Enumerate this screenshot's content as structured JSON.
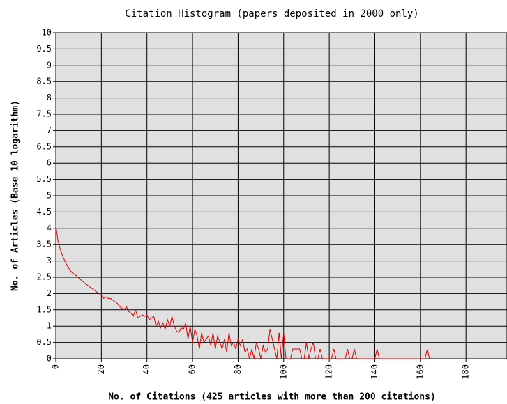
{
  "chart_data": {
    "type": "line",
    "title": "Citation Histogram (papers deposited in 2000 only)",
    "x_label": "No. of Citations (425 articles with more than 200 citations)",
    "y_label": "No. of Articles (Base 10 logarithm)",
    "x": [
      0,
      1,
      2,
      3,
      4,
      5,
      6,
      7,
      8,
      9,
      10,
      11,
      12,
      13,
      14,
      15,
      16,
      17,
      18,
      19,
      20,
      21,
      22,
      23,
      24,
      25,
      26,
      27,
      28,
      29,
      30,
      31,
      32,
      33,
      34,
      35,
      36,
      37,
      38,
      39,
      40,
      41,
      42,
      43,
      44,
      45,
      46,
      47,
      48,
      49,
      50,
      51,
      52,
      53,
      54,
      55,
      56,
      57,
      58,
      59,
      60,
      61,
      62,
      63,
      64,
      65,
      66,
      67,
      68,
      69,
      70,
      71,
      72,
      73,
      74,
      75,
      76,
      77,
      78,
      79,
      80,
      81,
      82,
      83,
      84,
      85,
      86,
      87,
      88,
      89,
      90,
      91,
      92,
      93,
      94,
      95,
      96,
      97,
      98,
      99,
      100,
      101,
      102,
      103,
      104,
      105,
      106,
      107,
      108,
      109,
      110,
      111,
      112,
      113,
      114,
      115,
      116,
      117,
      118,
      119,
      120,
      121,
      122,
      123,
      127,
      128,
      129,
      130,
      131,
      132,
      140,
      141,
      142,
      162,
      163,
      164
    ],
    "series": [
      {
        "name": "articles",
        "color": "#dd0000",
        "values": [
          4.1,
          3.6,
          3.35,
          3.15,
          3.0,
          2.85,
          2.75,
          2.65,
          2.6,
          2.55,
          2.48,
          2.42,
          2.36,
          2.3,
          2.25,
          2.2,
          2.15,
          2.1,
          2.05,
          2.0,
          1.95,
          1.85,
          1.9,
          1.85,
          1.85,
          1.8,
          1.75,
          1.7,
          1.6,
          1.55,
          1.5,
          1.6,
          1.45,
          1.4,
          1.3,
          1.5,
          1.25,
          1.3,
          1.35,
          1.3,
          1.35,
          1.2,
          1.25,
          1.3,
          1.0,
          1.15,
          0.95,
          1.1,
          0.9,
          1.2,
          1.0,
          1.3,
          1.0,
          0.85,
          0.8,
          0.95,
          0.9,
          1.1,
          0.6,
          1.0,
          0.5,
          0.9,
          0.7,
          0.3,
          0.8,
          0.5,
          0.6,
          0.7,
          0.4,
          0.8,
          0.3,
          0.7,
          0.5,
          0.3,
          0.6,
          0.2,
          0.8,
          0.4,
          0.5,
          0.3,
          0.6,
          0.4,
          0.6,
          0.2,
          0.3,
          0,
          0.3,
          0,
          0.5,
          0.3,
          0,
          0.4,
          0.2,
          0.3,
          0.9,
          0.6,
          0.3,
          0,
          0.8,
          0,
          0.8,
          0,
          0,
          0,
          0.3,
          0.3,
          0.3,
          0.3,
          0,
          0,
          0.5,
          0,
          0.3,
          0.5,
          0,
          0,
          0.3,
          0,
          0,
          0,
          0,
          0,
          0.3,
          0,
          0,
          0.3,
          0,
          0,
          0.3,
          0,
          0,
          0.3,
          0,
          0,
          0.3,
          0
        ]
      }
    ],
    "xlim": [
      0,
      198
    ],
    "ylim": [
      0,
      10
    ],
    "xticks": [
      0,
      20,
      40,
      60,
      80,
      100,
      120,
      140,
      160,
      180
    ],
    "yticks": [
      0,
      0.5,
      1,
      1.5,
      2,
      2.5,
      3,
      3.5,
      4,
      4.5,
      5,
      5.5,
      6,
      6.5,
      7,
      7.5,
      8,
      8.5,
      9,
      9.5,
      10
    ],
    "grid": true
  }
}
